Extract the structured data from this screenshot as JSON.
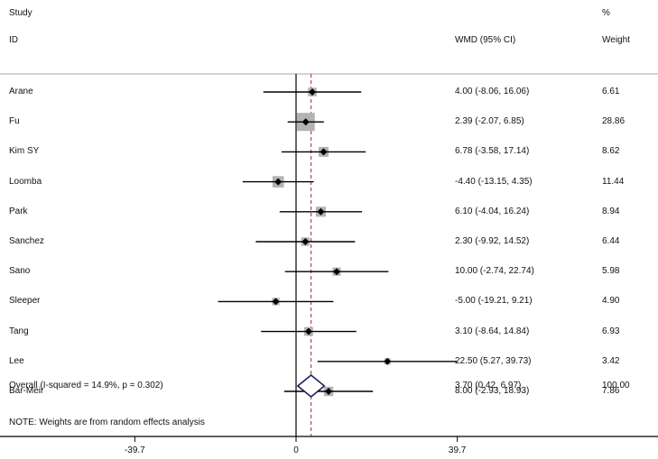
{
  "chart_data": {
    "type": "forest",
    "headers": {
      "study_top": "Study",
      "study_bottom": "ID",
      "effect": "WMD (95% CI)",
      "weight_top": "%",
      "weight_bottom": "Weight"
    },
    "studies": [
      {
        "id": "Arane",
        "wmd": 4.0,
        "lo": -8.06,
        "hi": 16.06,
        "ci_text": "4.00 (-8.06, 16.06)",
        "weight": "6.61"
      },
      {
        "id": "Fu",
        "wmd": 2.39,
        "lo": -2.07,
        "hi": 6.85,
        "ci_text": "2.39 (-2.07, 6.85)",
        "weight": "28.86"
      },
      {
        "id": "Kim SY",
        "wmd": 6.78,
        "lo": -3.58,
        "hi": 17.14,
        "ci_text": "6.78 (-3.58, 17.14)",
        "weight": "8.62"
      },
      {
        "id": "Loomba",
        "wmd": -4.4,
        "lo": -13.15,
        "hi": 4.35,
        "ci_text": "-4.40 (-13.15, 4.35)",
        "weight": "11.44"
      },
      {
        "id": "Park",
        "wmd": 6.1,
        "lo": -4.04,
        "hi": 16.24,
        "ci_text": "6.10 (-4.04, 16.24)",
        "weight": "8.94"
      },
      {
        "id": "Sanchez",
        "wmd": 2.3,
        "lo": -9.92,
        "hi": 14.52,
        "ci_text": "2.30 (-9.92, 14.52)",
        "weight": "6.44"
      },
      {
        "id": "Sano",
        "wmd": 10.0,
        "lo": -2.74,
        "hi": 22.74,
        "ci_text": "10.00 (-2.74, 22.74)",
        "weight": "5.98"
      },
      {
        "id": "Sleeper",
        "wmd": -5.0,
        "lo": -19.21,
        "hi": 9.21,
        "ci_text": "-5.00 (-19.21, 9.21)",
        "weight": "4.90"
      },
      {
        "id": "Tang",
        "wmd": 3.1,
        "lo": -8.64,
        "hi": 14.84,
        "ci_text": "3.10 (-8.64, 14.84)",
        "weight": "6.93"
      },
      {
        "id": "Lee",
        "wmd": 22.5,
        "lo": 5.27,
        "hi": 39.73,
        "ci_text": "22.50 (5.27, 39.73)",
        "weight": "3.42"
      },
      {
        "id": "Bar-Meir",
        "wmd": 8.0,
        "lo": -2.93,
        "hi": 18.93,
        "ci_text": "8.00 (-2.93, 18.93)",
        "weight": "7.86"
      }
    ],
    "overall": {
      "label": "Overall  (I-squared = 14.9%, p = 0.302)",
      "wmd": 3.7,
      "lo": 0.42,
      "hi": 6.97,
      "ci_text": "3.70 (0.42, 6.97)",
      "weight": "100.00"
    },
    "note": "NOTE: Weights are from random effects analysis",
    "xticks": [
      -39.7,
      0,
      39.7
    ],
    "xtick_labels": [
      "-39.7",
      "0",
      "39.7"
    ],
    "colors": {
      "box": "#b3b3b3",
      "line": "#000000",
      "diamond": "#1a1a5e",
      "overall_line": "#a0282d"
    }
  }
}
